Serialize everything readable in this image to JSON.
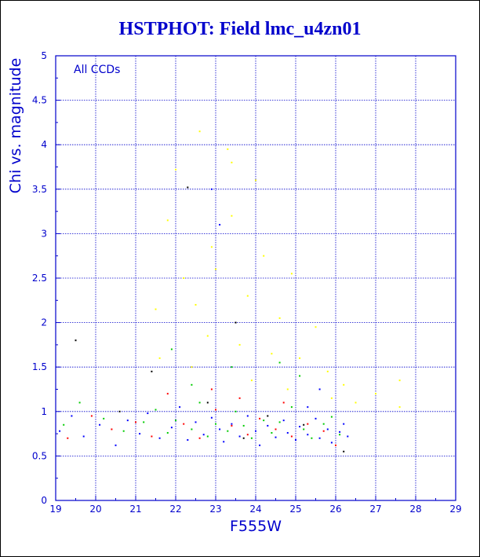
{
  "chart_data": {
    "type": "scatter",
    "title": "HSTPHOT: Field lmc_u4zn01",
    "xlabel": "F555W",
    "ylabel": "Chi vs. magnitude",
    "annotation": "All CCDs",
    "xlim": [
      19,
      29
    ],
    "ylim": [
      0,
      5
    ],
    "x_ticks": [
      "19",
      "20",
      "21",
      "22",
      "23",
      "24",
      "25",
      "26",
      "27",
      "28",
      "29"
    ],
    "y_ticks": [
      "0",
      "0.5",
      "1",
      "1.5",
      "2",
      "2.5",
      "3",
      "3.5",
      "4",
      "4.5",
      "5"
    ],
    "grid": true,
    "legend": "none",
    "colors": {
      "text": "#0000cc",
      "axes": "#0000cc",
      "grid": "#0000cc",
      "background": "#ffffff"
    },
    "series": [
      {
        "color": "#0000ff",
        "points": [
          [
            19.1,
            0.78
          ],
          [
            19.4,
            0.95
          ],
          [
            19.7,
            0.72
          ],
          [
            20.1,
            0.85
          ],
          [
            20.5,
            0.62
          ],
          [
            20.8,
            0.9
          ],
          [
            21.1,
            0.75
          ],
          [
            21.3,
            0.98
          ],
          [
            21.6,
            0.7
          ],
          [
            21.9,
            0.82
          ],
          [
            22.1,
            1.05
          ],
          [
            22.3,
            0.68
          ],
          [
            22.5,
            0.88
          ],
          [
            22.7,
            0.74
          ],
          [
            22.9,
            0.93
          ],
          [
            23.1,
            0.8
          ],
          [
            23.2,
            0.66
          ],
          [
            23.4,
            0.86
          ],
          [
            23.6,
            0.72
          ],
          [
            23.8,
            0.95
          ],
          [
            24.0,
            0.78
          ],
          [
            24.1,
            0.62
          ],
          [
            24.3,
            0.84
          ],
          [
            24.5,
            0.71
          ],
          [
            24.7,
            0.9
          ],
          [
            24.8,
            0.76
          ],
          [
            25.0,
            0.68
          ],
          [
            25.1,
            0.83
          ],
          [
            25.3,
            0.74
          ],
          [
            25.5,
            0.92
          ],
          [
            25.6,
            0.7
          ],
          [
            25.8,
            0.8
          ],
          [
            25.9,
            0.65
          ],
          [
            26.1,
            0.77
          ],
          [
            26.2,
            0.86
          ],
          [
            26.3,
            0.72
          ],
          [
            23.1,
            3.1
          ],
          [
            22.9,
            3.5
          ],
          [
            25.3,
            1.05
          ],
          [
            25.6,
            1.25
          ]
        ]
      },
      {
        "color": "#00cc00",
        "points": [
          [
            19.2,
            0.85
          ],
          [
            19.6,
            1.1
          ],
          [
            20.2,
            0.92
          ],
          [
            20.7,
            0.78
          ],
          [
            21.2,
            0.88
          ],
          [
            21.5,
            1.02
          ],
          [
            21.8,
            0.76
          ],
          [
            22.0,
            0.9
          ],
          [
            22.4,
            0.8
          ],
          [
            22.6,
            1.1
          ],
          [
            22.8,
            0.72
          ],
          [
            23.0,
            0.86
          ],
          [
            23.3,
            0.78
          ],
          [
            23.5,
            1.0
          ],
          [
            23.7,
            0.84
          ],
          [
            23.9,
            0.7
          ],
          [
            24.2,
            0.9
          ],
          [
            24.4,
            0.76
          ],
          [
            24.6,
            0.88
          ],
          [
            24.9,
            1.05
          ],
          [
            25.2,
            0.8
          ],
          [
            25.4,
            0.7
          ],
          [
            25.7,
            0.86
          ],
          [
            25.9,
            0.94
          ],
          [
            26.1,
            0.74
          ],
          [
            21.9,
            1.7
          ],
          [
            23.4,
            1.5
          ],
          [
            24.6,
            1.55
          ],
          [
            25.1,
            1.4
          ],
          [
            22.4,
            1.3
          ]
        ]
      },
      {
        "color": "#ff0000",
        "points": [
          [
            19.3,
            0.7
          ],
          [
            19.9,
            0.95
          ],
          [
            20.4,
            0.8
          ],
          [
            21.0,
            0.88
          ],
          [
            21.4,
            0.72
          ],
          [
            21.8,
            1.2
          ],
          [
            22.2,
            0.86
          ],
          [
            22.6,
            0.7
          ],
          [
            23.0,
            1.02
          ],
          [
            23.4,
            0.84
          ],
          [
            23.8,
            0.74
          ],
          [
            24.1,
            0.92
          ],
          [
            24.5,
            0.8
          ],
          [
            24.9,
            0.72
          ],
          [
            25.3,
            0.86
          ],
          [
            25.7,
            0.78
          ],
          [
            26.0,
            0.62
          ],
          [
            22.9,
            1.25
          ],
          [
            23.6,
            1.15
          ],
          [
            24.7,
            1.1
          ]
        ]
      },
      {
        "color": "#ffff00",
        "points": [
          [
            22.6,
            4.15
          ],
          [
            23.3,
            3.95
          ],
          [
            23.4,
            3.8
          ],
          [
            22.0,
            3.72
          ],
          [
            21.8,
            3.15
          ],
          [
            24.0,
            3.6
          ],
          [
            23.4,
            3.2
          ],
          [
            22.9,
            2.85
          ],
          [
            24.2,
            2.75
          ],
          [
            22.2,
            2.5
          ],
          [
            23.0,
            2.6
          ],
          [
            24.9,
            2.55
          ],
          [
            22.5,
            2.2
          ],
          [
            21.5,
            2.15
          ],
          [
            23.8,
            2.3
          ],
          [
            24.6,
            2.05
          ],
          [
            25.5,
            1.95
          ],
          [
            22.8,
            1.85
          ],
          [
            23.6,
            1.75
          ],
          [
            24.4,
            1.65
          ],
          [
            25.1,
            1.6
          ],
          [
            25.8,
            1.45
          ],
          [
            26.2,
            1.3
          ],
          [
            27.6,
            1.35
          ],
          [
            27.0,
            1.2
          ],
          [
            27.6,
            1.05
          ],
          [
            25.9,
            1.15
          ],
          [
            24.8,
            1.25
          ],
          [
            23.9,
            1.35
          ],
          [
            22.4,
            1.5
          ],
          [
            21.6,
            1.6
          ],
          [
            26.5,
            1.1
          ]
        ]
      },
      {
        "color": "#000000",
        "points": [
          [
            19.5,
            1.8
          ],
          [
            22.3,
            3.52
          ],
          [
            23.5,
            2.0
          ],
          [
            21.4,
            1.45
          ],
          [
            22.8,
            1.1
          ],
          [
            24.3,
            0.95
          ],
          [
            20.6,
            1.0
          ],
          [
            25.2,
            0.85
          ],
          [
            23.7,
            0.7
          ],
          [
            26.2,
            0.55
          ]
        ]
      }
    ]
  }
}
